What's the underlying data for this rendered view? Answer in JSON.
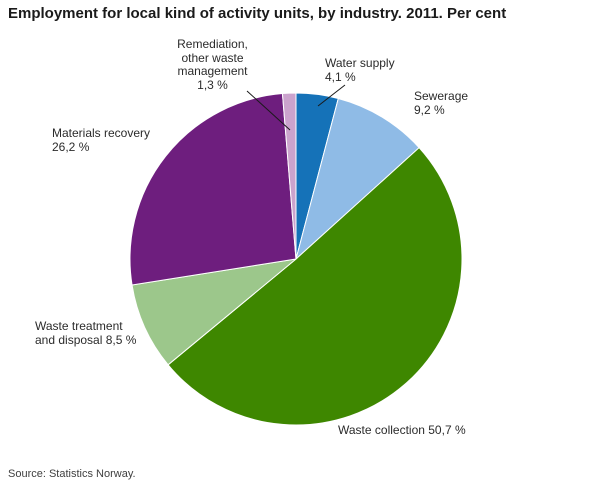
{
  "title": "Employment for local kind of activity units, by industry. 2011. Per cent",
  "source": "Source: Statistics Norway.",
  "chart_data": {
    "type": "pie",
    "title": "Employment for local kind of activity units, by industry. 2011. Per cent",
    "unit": "per cent",
    "total": 100,
    "start_angle": "top",
    "direction": "clockwise",
    "slices": [
      {
        "id": "water-supply",
        "label": "Water supply",
        "value": 4.1,
        "color": "#1572b8",
        "label_lines": [
          "Water supply",
          "4,1 %"
        ]
      },
      {
        "id": "sewerage",
        "label": "Sewerage",
        "value": 9.2,
        "color": "#8fbbe6",
        "label_lines": [
          "Sewerage",
          "9,2 %"
        ]
      },
      {
        "id": "waste-collection",
        "label": "Waste collection",
        "value": 50.7,
        "color": "#3e8700",
        "label_lines": [
          "Waste collection 50,7 %"
        ]
      },
      {
        "id": "waste-treatment-and-disposal",
        "label": "Waste treatment and disposal",
        "value": 8.5,
        "color": "#9cc78b",
        "label_lines": [
          "Waste treatment",
          "and disposal 8,5 %"
        ]
      },
      {
        "id": "materials-recovery",
        "label": "Materials recovery",
        "value": 26.2,
        "color": "#6e1e7e",
        "label_lines": [
          "Materials recovery",
          "26,2 %"
        ]
      },
      {
        "id": "remediation-other-waste-management",
        "label": "Remediation, other waste management",
        "value": 1.3,
        "color": "#cba3cd",
        "label_lines": [
          "Remediation,",
          "other waste",
          "management",
          "1,3 %"
        ]
      }
    ]
  }
}
